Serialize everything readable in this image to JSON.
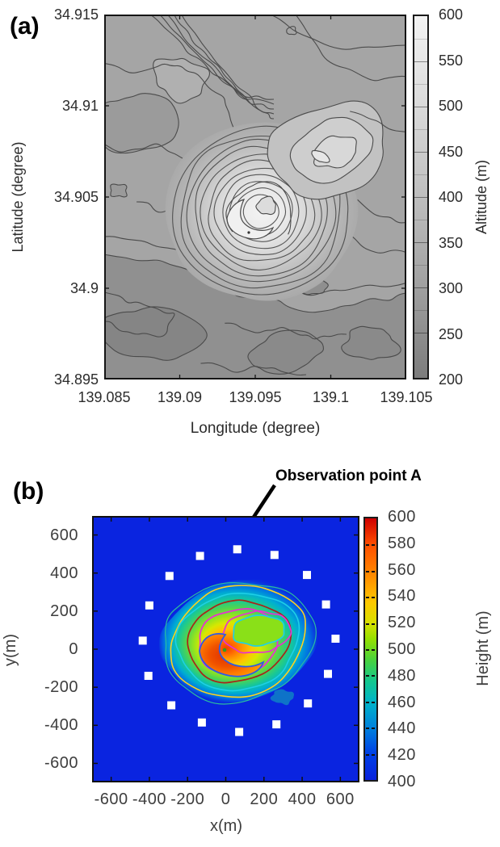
{
  "figure": {
    "panel_a": {
      "tag": "(a)",
      "xlabel": "Longitude (degree)",
      "ylabel": "Latitude (degree)",
      "colorbar_label": "Altitude (m)"
    },
    "panel_b": {
      "tag": "(b)",
      "annotation": "Observation point A",
      "xlabel": "x(m)",
      "ylabel": "y(m)",
      "colorbar_label": "Height (m)"
    }
  },
  "chart_data": [
    {
      "panel": "a",
      "type": "heatmap",
      "subtype": "grayscale topographic contour map",
      "xlabel": "Longitude (degree)",
      "ylabel": "Latitude (degree)",
      "xlim": [
        139.085,
        139.105
      ],
      "ylim": [
        34.895,
        34.915
      ],
      "x_ticks": [
        139.085,
        139.09,
        139.095,
        139.1,
        139.105
      ],
      "y_ticks": [
        34.915,
        34.91,
        34.905,
        34.9,
        34.895
      ],
      "colorbar": {
        "label": "Altitude (m)",
        "range": [
          200,
          600
        ],
        "ticks": [
          600,
          550,
          500,
          450,
          400,
          350,
          300,
          250,
          200
        ],
        "low_color": "#7c7c7c",
        "high_color": "#f3f3f3"
      },
      "summit": {
        "lon": 139.0954,
        "lat": 34.9042,
        "approx_altitude_m": 580
      },
      "summit_contour_rings": 11,
      "secondary_peak": {
        "lon": 139.0998,
        "lat": 34.9076
      },
      "background_altitude_range_m": [
        300,
        420
      ],
      "grid": false
    },
    {
      "panel": "b",
      "type": "heatmap",
      "subtype": "filled contour height map, rainbow colormap",
      "xlabel": "x(m)",
      "ylabel": "y(m)",
      "xlim": [
        -700,
        700
      ],
      "ylim": [
        -700,
        700
      ],
      "x_ticks": [
        -600,
        -400,
        -200,
        0,
        200,
        400,
        600
      ],
      "y_ticks": [
        600,
        400,
        200,
        0,
        -200,
        -400,
        -600
      ],
      "colorbar": {
        "label": "Height (m)",
        "range": [
          400,
          600
        ],
        "ticks": [
          600,
          580,
          560,
          540,
          520,
          500,
          480,
          460,
          440,
          420,
          400
        ],
        "colors_low_to_high": [
          "#0a22dc",
          "#0040e6",
          "#00b4c8",
          "#14c88c",
          "#4ad23c",
          "#d8e000",
          "#ffc800",
          "#ff8c00",
          "#ff4e00",
          "#cf0000"
        ]
      },
      "background_height_m": 400,
      "peak": {
        "x": 0,
        "y": -25,
        "approx_height_m": 590
      },
      "crater_depression": {
        "x": 175,
        "y": 100
      },
      "mound_extent": {
        "x": [
          -325,
          465
        ],
        "y": [
          -260,
          350
        ]
      },
      "contour_line_colors": [
        "#2bbf9e",
        "#ffd21e",
        "#1ed0e6",
        "#a82418",
        "#e632d2",
        "#2d5be6"
      ],
      "annotation": {
        "text": "Observation point A",
        "points_to": {
          "x": 60,
          "y": 525
        }
      },
      "observation_points": [
        {
          "x": 60,
          "y": 525,
          "label": "A"
        },
        {
          "x": -135,
          "y": 490
        },
        {
          "x": 255,
          "y": 495
        },
        {
          "x": -295,
          "y": 385
        },
        {
          "x": 425,
          "y": 390
        },
        {
          "x": -400,
          "y": 230
        },
        {
          "x": 525,
          "y": 235
        },
        {
          "x": -435,
          "y": 45
        },
        {
          "x": 575,
          "y": 55
        },
        {
          "x": -405,
          "y": -140
        },
        {
          "x": 535,
          "y": -130
        },
        {
          "x": -285,
          "y": -295
        },
        {
          "x": 430,
          "y": -285
        },
        {
          "x": -125,
          "y": -385
        },
        {
          "x": 265,
          "y": -395
        },
        {
          "x": 70,
          "y": -435
        }
      ]
    }
  ]
}
